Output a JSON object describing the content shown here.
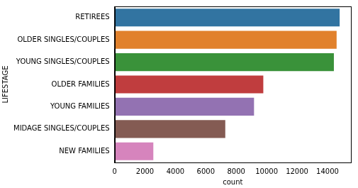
{
  "chart_data": {
    "type": "bar",
    "orientation": "horizontal",
    "categories": [
      "RETIREES",
      "OLDER SINGLES/COUPLES",
      "YOUNG SINGLES/COUPLES",
      "OLDER FAMILIES",
      "YOUNG FAMILIES",
      "MIDAGE SINGLES/COUPLES",
      "NEW FAMILIES"
    ],
    "values": [
      14800,
      14600,
      14420,
      9780,
      9170,
      7280,
      2550
    ],
    "colors": [
      "#3274a1",
      "#e1812c",
      "#3a923a",
      "#c03d3e",
      "#9372b2",
      "#845b53",
      "#d684bd"
    ],
    "x_label": "count",
    "y_label": "LIFESTAGE",
    "xlim": [
      0,
      15540
    ],
    "xticks": [
      0,
      2000,
      4000,
      6000,
      8000,
      10000,
      12000,
      14000
    ],
    "grid": false
  }
}
